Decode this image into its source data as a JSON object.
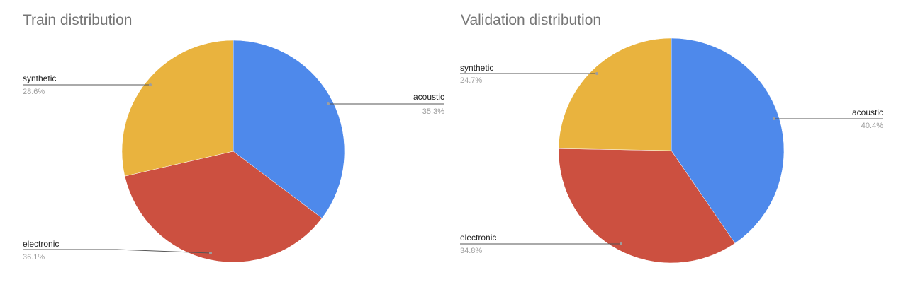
{
  "chart_data": [
    {
      "type": "pie",
      "title": "Train distribution",
      "slices": [
        {
          "label": "acoustic",
          "value": 35.3,
          "percent_label": "35.3%",
          "color": "#4e89eb"
        },
        {
          "label": "electronic",
          "value": 36.1,
          "percent_label": "36.1%",
          "color": "#cc5040"
        },
        {
          "label": "synthetic",
          "value": 28.6,
          "percent_label": "28.6%",
          "color": "#e9b33e"
        }
      ]
    },
    {
      "type": "pie",
      "title": "Validation distribution",
      "slices": [
        {
          "label": "acoustic",
          "value": 40.4,
          "percent_label": "40.4%",
          "color": "#4e89eb"
        },
        {
          "label": "electronic",
          "value": 34.8,
          "percent_label": "34.8%",
          "color": "#cc5040"
        },
        {
          "label": "synthetic",
          "value": 24.7,
          "percent_label": "24.7%",
          "color": "#e9b33e"
        }
      ]
    }
  ]
}
